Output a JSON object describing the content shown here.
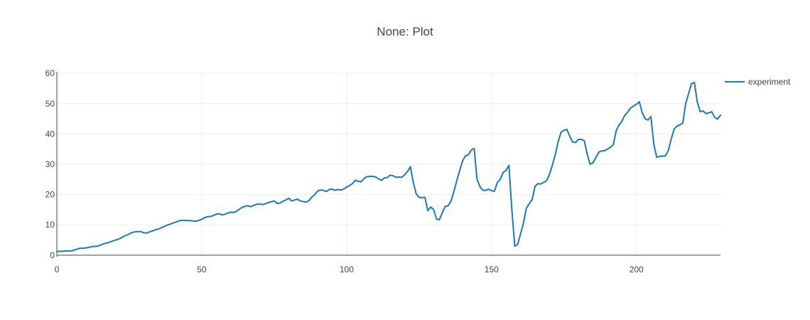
{
  "chart_data": {
    "type": "line",
    "title": "None: Plot",
    "xlabel": "",
    "ylabel": "",
    "xlim": [
      0,
      229
    ],
    "ylim": [
      -0.5,
      60.5
    ],
    "xticks": [
      0,
      50,
      100,
      150,
      200
    ],
    "yticks": [
      0,
      10,
      20,
      30,
      40,
      50,
      60
    ],
    "grid": true,
    "legend_position": "top-right",
    "series": [
      {
        "name": "experiment",
        "color": "#1f77b4",
        "x": [
          0,
          1,
          2,
          3,
          4,
          5,
          6,
          7,
          8,
          9,
          10,
          11,
          12,
          13,
          14,
          15,
          16,
          17,
          18,
          19,
          20,
          21,
          22,
          23,
          24,
          25,
          26,
          27,
          28,
          29,
          30,
          31,
          32,
          33,
          34,
          35,
          36,
          37,
          38,
          39,
          40,
          41,
          42,
          43,
          44,
          45,
          46,
          47,
          48,
          49,
          50,
          51,
          52,
          53,
          54,
          55,
          56,
          57,
          58,
          59,
          60,
          61,
          62,
          63,
          64,
          65,
          66,
          67,
          68,
          69,
          70,
          71,
          72,
          73,
          74,
          75,
          76,
          77,
          78,
          79,
          80,
          81,
          82,
          83,
          84,
          85,
          86,
          87,
          88,
          89,
          90,
          91,
          92,
          93,
          94,
          95,
          96,
          97,
          98,
          99,
          100,
          101,
          102,
          103,
          104,
          105,
          106,
          107,
          108,
          109,
          110,
          111,
          112,
          113,
          114,
          115,
          116,
          117,
          118,
          119,
          120,
          121,
          122,
          123,
          124,
          125,
          126,
          127,
          128,
          129,
          130,
          131,
          132,
          133,
          134,
          135,
          136,
          137,
          138,
          139,
          140,
          141,
          142,
          143,
          144,
          145,
          146,
          147,
          148,
          149,
          150,
          151,
          152,
          153,
          154,
          155,
          156,
          157,
          158,
          159,
          160,
          161,
          162,
          163,
          164,
          165,
          166,
          167,
          168,
          169,
          170,
          171,
          172,
          173,
          174,
          175,
          176,
          177,
          178,
          179,
          180,
          181,
          182,
          183,
          184,
          185,
          186,
          187,
          188,
          189,
          190,
          191,
          192,
          193,
          194,
          195,
          196,
          197,
          198,
          199,
          200,
          201,
          202,
          203,
          204,
          205,
          206,
          207,
          208,
          209,
          210,
          211,
          212,
          213,
          214,
          215,
          216,
          217,
          218,
          219,
          220,
          221,
          222,
          223,
          224,
          225,
          226,
          227,
          228,
          229
        ],
        "y": [
          1.2,
          1.3,
          1.3,
          1.4,
          1.4,
          1.4,
          1.7,
          2.0,
          2.3,
          2.3,
          2.4,
          2.6,
          2.8,
          2.9,
          3.0,
          3.3,
          3.7,
          4.0,
          4.2,
          4.6,
          4.9,
          5.2,
          5.6,
          6.2,
          6.6,
          7.0,
          7.5,
          7.7,
          7.8,
          7.8,
          7.4,
          7.3,
          7.7,
          8.0,
          8.4,
          8.6,
          9.0,
          9.5,
          9.9,
          10.2,
          10.6,
          10.9,
          11.3,
          11.5,
          11.5,
          11.4,
          11.4,
          11.3,
          11.2,
          11.5,
          11.8,
          12.4,
          12.7,
          12.8,
          13.1,
          13.5,
          13.7,
          13.3,
          13.5,
          13.9,
          14.2,
          14.1,
          14.5,
          15.2,
          15.8,
          16.2,
          16.3,
          16.0,
          16.5,
          16.8,
          16.9,
          16.7,
          17.0,
          17.4,
          17.6,
          17.9,
          17.1,
          17.2,
          17.8,
          18.2,
          18.8,
          17.9,
          18.2,
          18.5,
          17.9,
          17.7,
          17.5,
          18.0,
          19.2,
          20.0,
          21.2,
          21.5,
          21.4,
          21.0,
          21.7,
          21.8,
          21.4,
          21.7,
          21.5,
          21.8,
          22.5,
          23.0,
          23.6,
          24.7,
          24.4,
          24.2,
          25.3,
          25.9,
          26.0,
          26.0,
          25.8,
          25.2,
          24.7,
          25.5,
          25.6,
          26.4,
          26.2,
          25.7,
          25.8,
          25.7,
          26.5,
          27.6,
          29.2,
          24.0,
          20.2,
          19.1,
          19.0,
          19.1,
          14.7,
          15.9,
          15.1,
          11.9,
          11.7,
          14.0,
          16.1,
          16.3,
          17.8,
          20.9,
          24.6,
          27.9,
          31.1,
          32.8,
          33.1,
          34.7,
          35.2,
          25.0,
          22.6,
          21.4,
          21.4,
          21.8,
          21.3,
          21.1,
          24.0,
          25.0,
          27.3,
          28.0,
          29.6,
          15.2,
          3.0,
          3.5,
          7.0,
          10.5,
          15.5,
          17.0,
          18.3,
          22.7,
          23.6,
          23.5,
          24.0,
          24.6,
          26.7,
          29.7,
          33.2,
          37.5,
          40.6,
          41.2,
          41.5,
          39.2,
          37.3,
          37.2,
          38.2,
          38.2,
          37.8,
          33.4,
          30.0,
          30.5,
          32.2,
          34.0,
          34.4,
          34.5,
          35.0,
          35.6,
          36.4,
          41.0,
          43.0,
          44.2,
          46.2,
          47.2,
          48.6,
          49.2,
          49.8,
          50.6,
          47.0,
          45.0,
          44.6,
          45.7,
          36.6,
          32.3,
          32.6,
          32.7,
          32.8,
          34.5,
          38.3,
          41.6,
          42.6,
          43.0,
          43.6,
          50.1,
          53.3,
          56.6,
          57.0,
          50.5,
          47.4,
          47.6,
          46.7,
          47.0,
          47.3,
          45.5,
          44.9,
          46.2
        ]
      }
    ]
  }
}
